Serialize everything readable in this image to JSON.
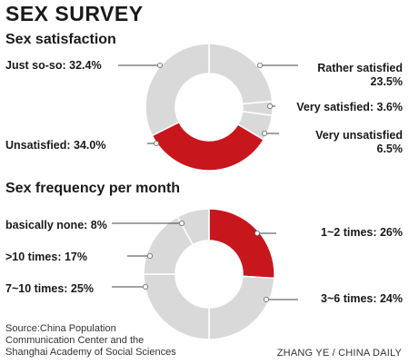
{
  "header": {
    "title": "SEX SURVEY"
  },
  "chart_data": [
    {
      "type": "pie",
      "donut": true,
      "title": "Sex satisfaction",
      "slices": [
        {
          "label": "Rather satisfied",
          "value": 23.5,
          "display": "Rather satisfied",
          "value_text": "23.5%",
          "color": "#d9d9d9"
        },
        {
          "label": "Very satisfied",
          "value": 3.6,
          "display": "Very satisfied: 3.6%",
          "color": "#d9d9d9"
        },
        {
          "label": "Very unsatisfied",
          "value": 6.5,
          "display": "Very unsatisfied",
          "value_text": "6.5%",
          "color": "#d9d9d9"
        },
        {
          "label": "Unsatisfied",
          "value": 34.0,
          "display": "Unsatisfied: 34.0%",
          "color": "#c8161d"
        },
        {
          "label": "Just so-so",
          "value": 32.4,
          "display": "Just so-so: 32.4%",
          "color": "#d9d9d9"
        }
      ]
    },
    {
      "type": "pie",
      "donut": true,
      "title": "Sex frequency per month",
      "slices": [
        {
          "label": "1~2 times",
          "value": 26,
          "display": "1~2 times: 26%",
          "color": "#c8161d"
        },
        {
          "label": "3~6 times",
          "value": 24,
          "display": "3~6 times: 24%",
          "color": "#d9d9d9"
        },
        {
          "label": "7~10 times",
          "value": 25,
          "display": "7~10 times: 25%",
          "color": "#d9d9d9"
        },
        {
          "label": ">10 times",
          "value": 17,
          "display": ">10 times: 17%",
          "color": "#d9d9d9"
        },
        {
          "label": "basically none",
          "value": 8,
          "display": "basically none: 8%",
          "color": "#d9d9d9"
        }
      ]
    }
  ],
  "footer": {
    "source_lines": [
      "Source:China Population",
      "Communication Center and the",
      "Shanghai Academy of Social Sciences"
    ],
    "credit": "ZHANG YE / CHINA DAILY"
  }
}
